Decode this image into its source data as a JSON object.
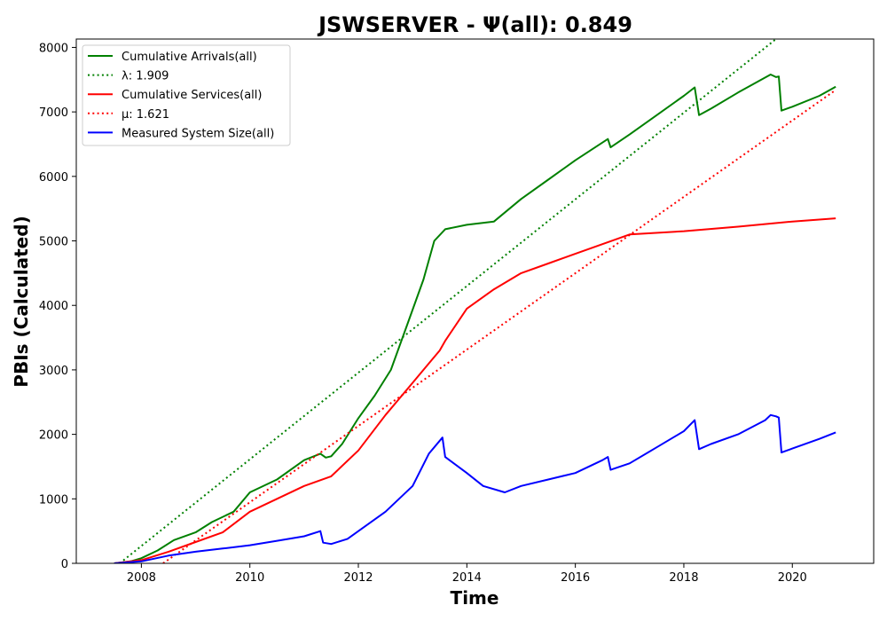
{
  "chart_data": {
    "type": "line",
    "title": "JSWSERVER -  Ψ(all): 0.849",
    "xlabel": "Time",
    "ylabel": "PBIs (Calculated)",
    "xlim": [
      2006.8,
      2021.5
    ],
    "ylim": [
      0,
      8130
    ],
    "x_ticks": [
      2008,
      2010,
      2012,
      2014,
      2016,
      2018,
      2020
    ],
    "y_ticks": [
      0,
      1000,
      2000,
      3000,
      4000,
      5000,
      6000,
      7000,
      8000
    ],
    "grid": false,
    "legend_position": "top-left",
    "series": [
      {
        "name": "Cumulative Arrivals(all)",
        "color": "#008000",
        "style": "solid",
        "points": [
          [
            2007.5,
            0
          ],
          [
            2007.8,
            30
          ],
          [
            2008.0,
            80
          ],
          [
            2008.3,
            200
          ],
          [
            2008.6,
            360
          ],
          [
            2009.0,
            480
          ],
          [
            2009.3,
            640
          ],
          [
            2009.7,
            800
          ],
          [
            2010.0,
            1100
          ],
          [
            2010.5,
            1300
          ],
          [
            2011.0,
            1600
          ],
          [
            2011.3,
            1700
          ],
          [
            2011.4,
            1640
          ],
          [
            2011.5,
            1660
          ],
          [
            2011.7,
            1850
          ],
          [
            2012.0,
            2250
          ],
          [
            2012.3,
            2600
          ],
          [
            2012.6,
            3000
          ],
          [
            2012.9,
            3700
          ],
          [
            2013.2,
            4400
          ],
          [
            2013.4,
            5000
          ],
          [
            2013.6,
            5180
          ],
          [
            2014.0,
            5250
          ],
          [
            2014.5,
            5300
          ],
          [
            2015.0,
            5650
          ],
          [
            2015.5,
            5950
          ],
          [
            2016.0,
            6250
          ],
          [
            2016.6,
            6580
          ],
          [
            2016.65,
            6450
          ],
          [
            2017.0,
            6650
          ],
          [
            2017.5,
            6950
          ],
          [
            2018.0,
            7250
          ],
          [
            2018.2,
            7380
          ],
          [
            2018.28,
            6950
          ],
          [
            2018.5,
            7050
          ],
          [
            2019.0,
            7300
          ],
          [
            2019.6,
            7580
          ],
          [
            2019.7,
            7540
          ],
          [
            2019.75,
            7550
          ],
          [
            2019.8,
            7020
          ],
          [
            2020.0,
            7080
          ],
          [
            2020.5,
            7250
          ],
          [
            2020.8,
            7390
          ]
        ]
      },
      {
        "name": "λ: 1.909",
        "color": "#008000",
        "style": "dotted",
        "points": [
          [
            2007.6,
            0
          ],
          [
            2019.7,
            8130
          ]
        ]
      },
      {
        "name": "Cumulative Services(all)",
        "color": "#ff0000",
        "style": "solid",
        "points": [
          [
            2007.5,
            0
          ],
          [
            2008.0,
            50
          ],
          [
            2008.5,
            180
          ],
          [
            2009.0,
            330
          ],
          [
            2009.5,
            480
          ],
          [
            2010.0,
            800
          ],
          [
            2010.5,
            1000
          ],
          [
            2011.0,
            1200
          ],
          [
            2011.5,
            1350
          ],
          [
            2012.0,
            1750
          ],
          [
            2012.5,
            2300
          ],
          [
            2013.0,
            2800
          ],
          [
            2013.3,
            3100
          ],
          [
            2013.5,
            3300
          ],
          [
            2013.6,
            3450
          ],
          [
            2014.0,
            3950
          ],
          [
            2014.5,
            4250
          ],
          [
            2015.0,
            4500
          ],
          [
            2015.5,
            4650
          ],
          [
            2016.0,
            4800
          ],
          [
            2016.5,
            4950
          ],
          [
            2017.0,
            5100
          ],
          [
            2018.0,
            5150
          ],
          [
            2019.0,
            5220
          ],
          [
            2020.0,
            5300
          ],
          [
            2020.8,
            5350
          ]
        ]
      },
      {
        "name": "μ: 1.621",
        "color": "#ff0000",
        "style": "dotted",
        "points": [
          [
            2008.4,
            0
          ],
          [
            2020.8,
            7340
          ]
        ]
      },
      {
        "name": "Measured System Size(all)",
        "color": "#0000ff",
        "style": "solid",
        "points": [
          [
            2007.5,
            0
          ],
          [
            2008.0,
            30
          ],
          [
            2008.5,
            120
          ],
          [
            2009.0,
            180
          ],
          [
            2009.5,
            230
          ],
          [
            2010.0,
            280
          ],
          [
            2010.5,
            350
          ],
          [
            2011.0,
            420
          ],
          [
            2011.3,
            500
          ],
          [
            2011.35,
            320
          ],
          [
            2011.5,
            300
          ],
          [
            2011.8,
            380
          ],
          [
            2012.0,
            500
          ],
          [
            2012.5,
            800
          ],
          [
            2013.0,
            1200
          ],
          [
            2013.3,
            1700
          ],
          [
            2013.55,
            1950
          ],
          [
            2013.6,
            1650
          ],
          [
            2014.0,
            1400
          ],
          [
            2014.3,
            1200
          ],
          [
            2014.7,
            1100
          ],
          [
            2015.0,
            1200
          ],
          [
            2015.5,
            1300
          ],
          [
            2016.0,
            1400
          ],
          [
            2016.5,
            1600
          ],
          [
            2016.6,
            1650
          ],
          [
            2016.65,
            1450
          ],
          [
            2017.0,
            1550
          ],
          [
            2017.5,
            1800
          ],
          [
            2018.0,
            2050
          ],
          [
            2018.2,
            2220
          ],
          [
            2018.28,
            1770
          ],
          [
            2018.5,
            1850
          ],
          [
            2019.0,
            2000
          ],
          [
            2019.5,
            2220
          ],
          [
            2019.6,
            2300
          ],
          [
            2019.7,
            2280
          ],
          [
            2019.75,
            2260
          ],
          [
            2019.8,
            1720
          ],
          [
            2020.0,
            1780
          ],
          [
            2020.5,
            1930
          ],
          [
            2020.8,
            2030
          ]
        ]
      }
    ]
  }
}
